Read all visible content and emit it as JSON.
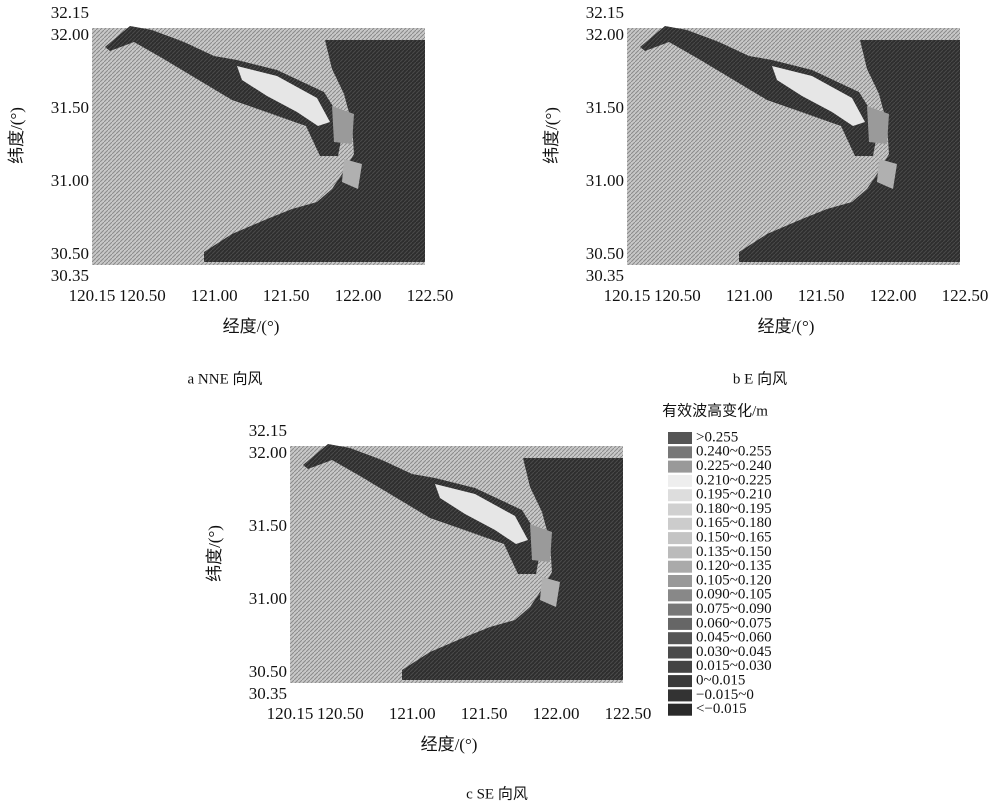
{
  "panels": [
    {
      "caption": "a NNE 向风",
      "xlabel": "经度/(°)",
      "ylabel": "纬度/(°)",
      "xticks": [
        "120.15",
        "120.50",
        "121.00",
        "121.50",
        "122.00",
        "122.50"
      ],
      "yticks": [
        "32.15",
        "32.00",
        "31.50",
        "31.00",
        "30.50",
        "30.35"
      ]
    },
    {
      "caption": "b E 向风",
      "xlabel": "经度/(°)",
      "ylabel": "纬度/(°)",
      "xticks": [
        "120.15",
        "120.50",
        "121.00",
        "121.50",
        "122.00",
        "122.50"
      ],
      "yticks": [
        "32.15",
        "32.00",
        "31.50",
        "31.00",
        "30.50",
        "30.35"
      ]
    },
    {
      "caption": "c SE 向风",
      "xlabel": "经度/(°)",
      "ylabel": "纬度/(°)",
      "xticks": [
        "120.15",
        "120.50",
        "121.00",
        "121.50",
        "122.00",
        "122.50"
      ],
      "yticks": [
        "32.15",
        "32.00",
        "31.50",
        "31.00",
        "30.50",
        "30.35"
      ]
    }
  ],
  "legend": {
    "title": "有效波高变化/m",
    "items": [
      {
        "label": ">0.255",
        "color": "#555"
      },
      {
        "label": "0.240~0.255",
        "color": "#777"
      },
      {
        "label": "0.225~0.240",
        "color": "#999"
      },
      {
        "label": "0.210~0.225",
        "color": "#eee"
      },
      {
        "label": "0.195~0.210",
        "color": "#ddd"
      },
      {
        "label": "0.180~0.195",
        "color": "#d0d0d0"
      },
      {
        "label": "0.165~0.180",
        "color": "#ccc"
      },
      {
        "label": "0.150~0.165",
        "color": "#c4c4c4"
      },
      {
        "label": "0.135~0.150",
        "color": "#bbb"
      },
      {
        "label": "0.120~0.135",
        "color": "#aaa"
      },
      {
        "label": "0.105~0.120",
        "color": "#999"
      },
      {
        "label": "0.090~0.105",
        "color": "#888"
      },
      {
        "label": "0.075~0.090",
        "color": "#777"
      },
      {
        "label": "0.060~0.075",
        "color": "#666"
      },
      {
        "label": "0.045~0.060",
        "color": "#555"
      },
      {
        "label": "0.030~0.045",
        "color": "#4a4a4a"
      },
      {
        "label": "0.015~0.030",
        "color": "#444"
      },
      {
        "label": "0~0.015",
        "color": "#3a3a3a"
      },
      {
        "label": "−0.015~0",
        "color": "#333"
      },
      {
        "label": "<−0.015",
        "color": "#2a2a2a"
      }
    ]
  }
}
